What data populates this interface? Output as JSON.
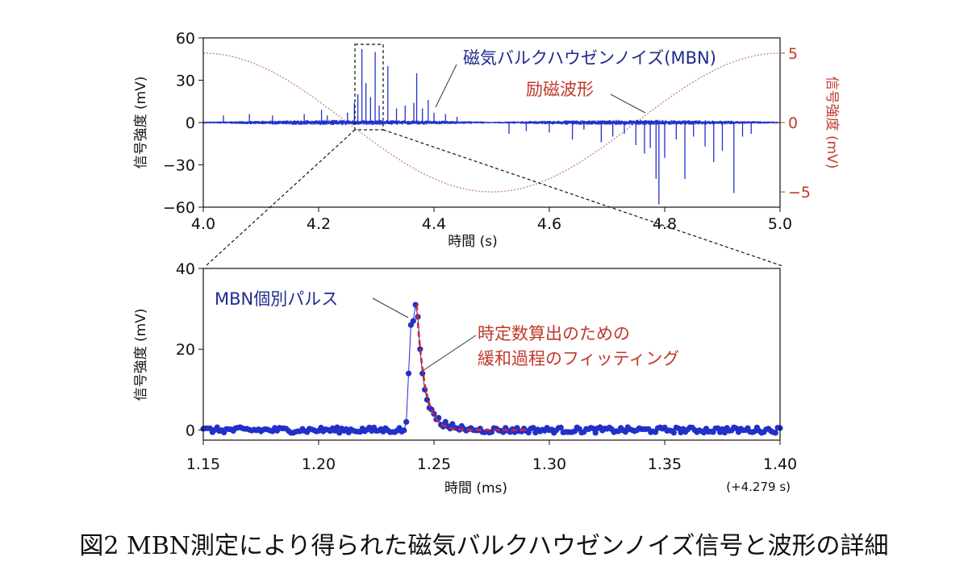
{
  "chart_data": [
    {
      "type": "line",
      "title": "",
      "xlabel": "時間 (s)",
      "ylabel": "信号強度 (mV)",
      "y2label": "信号強度 (mV)",
      "xlim": [
        4.0,
        5.0
      ],
      "ylim": [
        -60,
        60
      ],
      "y2lim": [
        -6.1,
        6.1
      ],
      "xticks": [
        "4.0",
        "4.2",
        "4.4",
        "4.6",
        "4.8",
        "5.0"
      ],
      "xtick_values": [
        4.0,
        4.2,
        4.4,
        4.6,
        4.8,
        5.0
      ],
      "yticks": [
        "60",
        "30",
        "0",
        "−30",
        "−60"
      ],
      "ytick_values": [
        60,
        30,
        0,
        -30,
        -60
      ],
      "y2ticks": [
        "5",
        "0",
        "−5"
      ],
      "y2tick_values": [
        5,
        0,
        -5
      ],
      "series": [
        {
          "name": "磁気バルクハウゼンノイズ(MBN)",
          "color": "#1f2ac8",
          "spikes": [
            [
              4.035,
              5
            ],
            [
              4.08,
              6
            ],
            [
              4.12,
              5
            ],
            [
              4.175,
              6
            ],
            [
              4.205,
              9
            ],
            [
              4.215,
              5
            ],
            [
              4.25,
              7
            ],
            [
              4.262,
              14
            ],
            [
              4.268,
              20
            ],
            [
              4.275,
              52
            ],
            [
              4.282,
              28
            ],
            [
              4.29,
              18
            ],
            [
              4.298,
              50
            ],
            [
              4.305,
              12
            ],
            [
              4.32,
              40
            ],
            [
              4.335,
              10
            ],
            [
              4.35,
              12
            ],
            [
              4.365,
              14
            ],
            [
              4.37,
              35
            ],
            [
              4.38,
              10
            ],
            [
              4.39,
              16
            ],
            [
              4.4,
              7
            ],
            [
              4.42,
              6
            ],
            [
              4.44,
              4
            ],
            [
              4.53,
              -8
            ],
            [
              4.56,
              -6
            ],
            [
              4.6,
              -7
            ],
            [
              4.64,
              -12
            ],
            [
              4.66,
              -5
            ],
            [
              4.69,
              -14
            ],
            [
              4.71,
              -10
            ],
            [
              4.73,
              -8
            ],
            [
              4.75,
              -16
            ],
            [
              4.765,
              -22
            ],
            [
              4.775,
              -18
            ],
            [
              4.785,
              -40
            ],
            [
              4.79,
              -58
            ],
            [
              4.8,
              -25
            ],
            [
              4.82,
              -12
            ],
            [
              4.835,
              -40
            ],
            [
              4.85,
              -10
            ],
            [
              4.87,
              -17
            ],
            [
              4.885,
              -28
            ],
            [
              4.9,
              -20
            ],
            [
              4.92,
              -50
            ],
            [
              4.935,
              -10
            ],
            [
              4.95,
              -8
            ]
          ]
        },
        {
          "name": "励磁波形",
          "axis": "right",
          "color": "#c0392b",
          "function": "sine",
          "amplitude": 5,
          "period_s": 1.0,
          "peak_at": 4.0
        }
      ],
      "annotations": [
        {
          "text": "磁気バルクハウゼンノイズ(MBN)",
          "color": "#1f2a8f"
        },
        {
          "text": "励磁波形",
          "color": "#c0392b"
        }
      ],
      "zoom_box": {
        "x": [
          4.26,
          4.31
        ],
        "y": [
          -6,
          60
        ]
      }
    },
    {
      "type": "scatter",
      "title": "",
      "xlabel": "時間 (ms)",
      "ylabel": "信号強度 (mV)",
      "xlim": [
        1.15,
        1.4
      ],
      "ylim": [
        -2.5,
        40
      ],
      "xticks": [
        "1.15",
        "1.20",
        "1.25",
        "1.30",
        "1.35",
        "1.40"
      ],
      "xtick_values": [
        1.15,
        1.2,
        1.25,
        1.3,
        1.35,
        1.4
      ],
      "yticks": [
        "40",
        "20",
        "0"
      ],
      "ytick_values": [
        40,
        20,
        0
      ],
      "offset_note": "(+4.279 s)",
      "series": [
        {
          "name": "MBN個別パルス",
          "color": "#1f2ac8",
          "baseline_mean": 0,
          "baseline_noise": 0.7,
          "x_start": 1.15,
          "x_end": 1.4,
          "step": 0.001,
          "pulse": {
            "x": [
              1.238,
              1.239,
              1.24,
              1.241,
              1.242,
              1.243,
              1.244,
              1.245,
              1.246,
              1.247,
              1.248,
              1.25,
              1.252,
              1.255,
              1.258,
              1.262,
              1.266
            ],
            "y": [
              2,
              14,
              26,
              27,
              31,
              28,
              20,
              14,
              10,
              7.5,
              5.5,
              4,
              3,
              2,
              1.5,
              1,
              0.5
            ]
          }
        },
        {
          "name": "時定数算出のための緩和過程のフィッティング",
          "style": "dashed",
          "color": "#d62728",
          "model": "exponential_decay",
          "x0": 1.2425,
          "x_end": 1.29,
          "amplitude": 31,
          "tau_ms": 0.0035
        }
      ],
      "annotations": [
        {
          "text": "MBN個別パルス",
          "color": "#1f2a8f"
        },
        {
          "text_line1": "時定数算出のための",
          "text_line2": "緩和過程のフィッティング",
          "color": "#c0392b"
        }
      ]
    }
  ],
  "caption": "図2 MBN測定により得られた磁気バルクハウゼンノイズ信号と波形の詳細"
}
